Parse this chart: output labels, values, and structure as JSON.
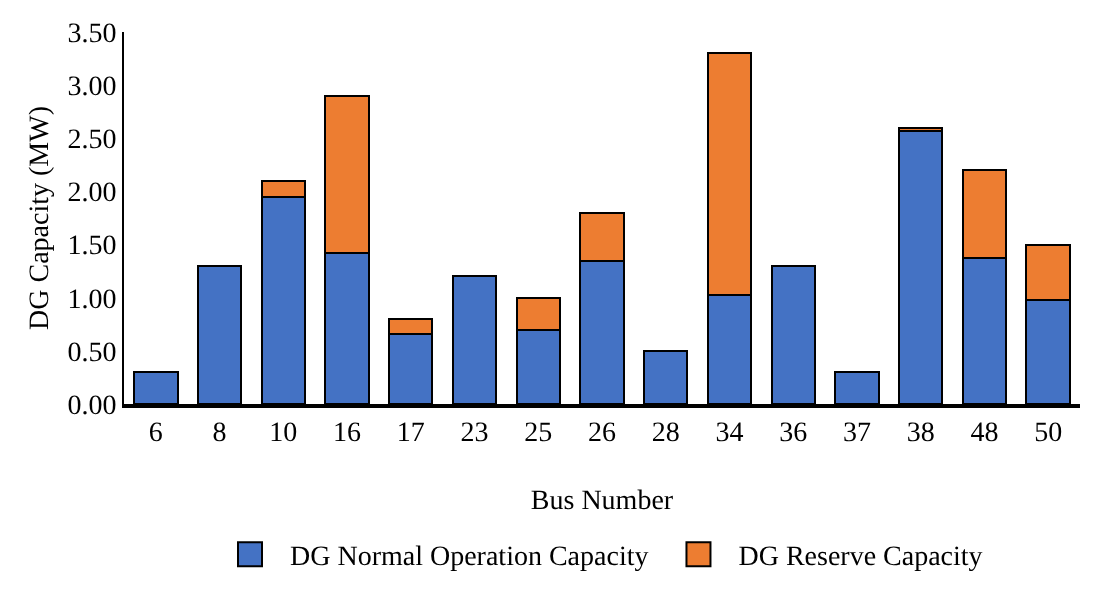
{
  "chart_data": {
    "type": "bar",
    "stacked": true,
    "xlabel": "Bus Number",
    "ylabel": "DG Capacity (MW)",
    "categories": [
      "6",
      "8",
      "10",
      "16",
      "17",
      "23",
      "25",
      "26",
      "28",
      "34",
      "36",
      "37",
      "38",
      "48",
      "50"
    ],
    "series": [
      {
        "name": "DG Normal Operation Capacity",
        "color": "#4472c4",
        "values": [
          0.3,
          1.3,
          1.95,
          1.42,
          0.66,
          1.2,
          0.7,
          1.35,
          0.5,
          1.03,
          1.3,
          0.3,
          2.57,
          1.37,
          0.98
        ]
      },
      {
        "name": "DG Reserve Capacity",
        "color": "#ed7d31",
        "values": [
          null,
          null,
          0.15,
          1.48,
          0.14,
          null,
          0.3,
          0.45,
          null,
          2.27,
          null,
          null,
          0.03,
          0.83,
          0.52
        ]
      }
    ],
    "ylim": [
      0,
      3.5
    ],
    "yticks": [
      {
        "value": 0,
        "label": "0.00"
      },
      {
        "value": 0.5,
        "label": "0.50"
      },
      {
        "value": 1,
        "label": "1.00"
      },
      {
        "value": 1.5,
        "label": "1.50"
      },
      {
        "value": 2,
        "label": "2.00"
      },
      {
        "value": 2.5,
        "label": "2.50"
      },
      {
        "value": 3,
        "label": "3.00"
      },
      {
        "value": 3.5,
        "label": "3.50"
      }
    ],
    "grid": false,
    "legend": "bottom"
  }
}
